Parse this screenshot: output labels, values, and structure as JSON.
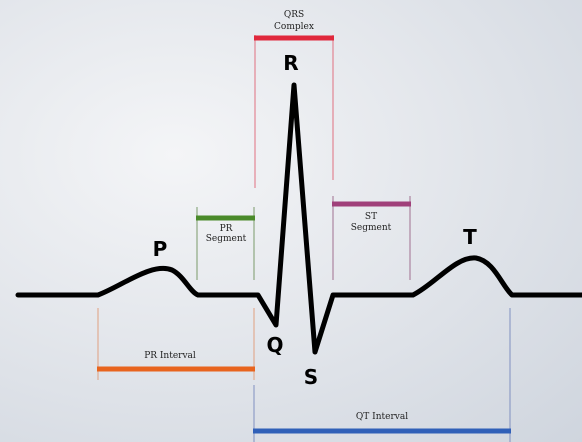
{
  "diagram": {
    "waves": {
      "p": "P",
      "q": "Q",
      "r": "R",
      "s": "S",
      "t": "T"
    },
    "qrs_complex": {
      "line1": "QRS",
      "line2": "Complex",
      "color": "#e0283c"
    },
    "pr_segment": {
      "line1": "PR",
      "line2": "Segment",
      "color": "#4a8a2a"
    },
    "st_segment": {
      "line1": "ST",
      "line2": "Segment",
      "color": "#a0407a"
    },
    "pr_interval": {
      "label": "PR Interval",
      "color": "#e8641e"
    },
    "qt_interval": {
      "label": "QT Interval",
      "color": "#3060b8"
    },
    "trace_color": "#000000"
  }
}
